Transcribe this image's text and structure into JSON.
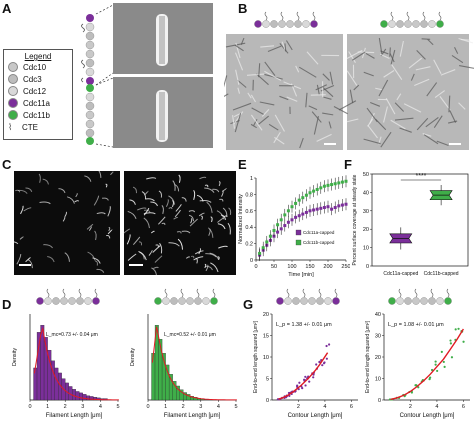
{
  "panels": {
    "A": {
      "letter": "A",
      "legend": {
        "title": "Legend",
        "items": [
          {
            "label": "Cdc10",
            "color": "#c8c8c8"
          },
          {
            "label": "Cdc3",
            "color": "#bdbdbd"
          },
          {
            "label": "Cdc12",
            "color": "#d9d9d9"
          },
          {
            "label": "Cdc11a",
            "color": "#7b2f9a"
          },
          {
            "label": "Cdc11b",
            "color": "#3fae49"
          },
          {
            "label": "CTE",
            "color": "#555555"
          }
        ]
      }
    },
    "B": {
      "letter": "B"
    },
    "C": {
      "letter": "C"
    },
    "D": {
      "letter": "D"
    },
    "E": {
      "letter": "E"
    },
    "F": {
      "letter": "F"
    },
    "G": {
      "letter": "G"
    }
  },
  "colors": {
    "purple": "#7b2f9a",
    "green": "#3fae49",
    "red": "#e01b24",
    "grey": "#bdbdbd"
  },
  "chart_data": [
    {
      "id": "E",
      "type": "line",
      "xlabel": "Time [min]",
      "ylabel": "Normalized Intensity",
      "xlim": [
        0,
        250
      ],
      "ylim": [
        0,
        1
      ],
      "xticks": [
        "0",
        "50",
        "100",
        "150",
        "200",
        "250"
      ],
      "yticks": [
        "0",
        "0.2",
        "0.4",
        "0.6",
        "0.8",
        "1"
      ],
      "legend": {
        "placement": "lower-right",
        "entries": [
          "Cdc11a-capped",
          "Cdc11b-capped"
        ]
      },
      "series": [
        {
          "name": "Cdc11a-capped",
          "color": "#7b2f9a",
          "x": [
            10,
            20,
            30,
            40,
            50,
            60,
            70,
            80,
            90,
            100,
            110,
            120,
            130,
            140,
            150,
            160,
            170,
            180,
            190,
            200,
            210,
            220,
            230,
            240,
            250
          ],
          "y": [
            0.06,
            0.12,
            0.18,
            0.24,
            0.29,
            0.34,
            0.38,
            0.42,
            0.46,
            0.49,
            0.52,
            0.54,
            0.56,
            0.58,
            0.6,
            0.61,
            0.62,
            0.63,
            0.64,
            0.65,
            0.62,
            0.64,
            0.66,
            0.67,
            0.68
          ]
        },
        {
          "name": "Cdc11b-capped",
          "color": "#3fae49",
          "x": [
            10,
            20,
            30,
            40,
            50,
            60,
            70,
            80,
            90,
            100,
            110,
            120,
            130,
            140,
            150,
            160,
            170,
            180,
            190,
            200,
            210,
            220,
            230,
            240,
            250
          ],
          "y": [
            0.08,
            0.15,
            0.22,
            0.29,
            0.36,
            0.43,
            0.49,
            0.55,
            0.6,
            0.65,
            0.69,
            0.73,
            0.76,
            0.79,
            0.82,
            0.84,
            0.86,
            0.88,
            0.9,
            0.91,
            0.92,
            0.93,
            0.94,
            0.95,
            0.96
          ]
        }
      ]
    },
    {
      "id": "F",
      "type": "box",
      "ylabel": "Percent surface coverage at steady state",
      "ylim": [
        0,
        50
      ],
      "yticks": [
        "0",
        "10",
        "20",
        "30",
        "40",
        "50"
      ],
      "categories": [
        "Cdc11a-capped",
        "Cdc11b-capped"
      ],
      "boxes": [
        {
          "category": "Cdc11a-capped",
          "color": "#7b2f9a",
          "min": 9,
          "q1": 12.5,
          "median": 15,
          "q3": 17.5,
          "max": 21
        },
        {
          "category": "Cdc11b-capped",
          "color": "#3fae49",
          "min": 33,
          "q1": 36,
          "median": 38.5,
          "q3": 41,
          "max": 44
        }
      ],
      "annotation": "****"
    },
    {
      "id": "D-left",
      "type": "bar",
      "xlabel": "Filament Length [μm]",
      "ylabel": "Density",
      "xticks": [
        "0",
        "1",
        "2",
        "3",
        "4",
        "5"
      ],
      "annotation": "L_mc=0.73 +/- 0.04 μm",
      "color": "#7b2f9a",
      "x": [
        0.3,
        0.5,
        0.7,
        0.9,
        1.1,
        1.3,
        1.5,
        1.7,
        1.9,
        2.1,
        2.3,
        2.5,
        2.7,
        2.9,
        3.1,
        3.3,
        3.5,
        3.7,
        3.9,
        4.1,
        4.3
      ],
      "values": [
        0.45,
        0.95,
        1.05,
        0.88,
        0.7,
        0.55,
        0.45,
        0.38,
        0.3,
        0.24,
        0.19,
        0.15,
        0.12,
        0.1,
        0.08,
        0.06,
        0.05,
        0.04,
        0.03,
        0.02,
        0.02
      ]
    },
    {
      "id": "D-right",
      "type": "bar",
      "xlabel": "Filament Length [μm]",
      "ylabel": "Density",
      "xticks": [
        "0",
        "1",
        "2",
        "3",
        "4",
        "5"
      ],
      "annotation": "L_mc=0.52 +/- 0.01 μm",
      "color": "#3fae49",
      "x": [
        0.3,
        0.5,
        0.7,
        0.9,
        1.1,
        1.3,
        1.5,
        1.7,
        1.9,
        2.1,
        2.3,
        2.5,
        2.7,
        2.9,
        3.1
      ],
      "values": [
        1.0,
        1.6,
        1.3,
        1.0,
        0.75,
        0.55,
        0.4,
        0.3,
        0.22,
        0.16,
        0.12,
        0.08,
        0.06,
        0.04,
        0.03
      ]
    },
    {
      "id": "G-left",
      "type": "scatter",
      "xlabel": "Contour Length [μm]",
      "ylabel": "End-to-end length squared [μm²]",
      "xticks": [
        "2",
        "4",
        "6"
      ],
      "yticks": [
        "0",
        "5",
        "10",
        "15",
        "20"
      ],
      "annotation": "L_p = 1.38 +/- 0.01 μm",
      "color": "#7b2f9a",
      "x": [
        0.5,
        0.8,
        1.0,
        1.2,
        1.4,
        1.6,
        1.8,
        2.0,
        2.2,
        2.4,
        2.6,
        2.8,
        3.0,
        3.3,
        3.6,
        3.9,
        4.2
      ],
      "y": [
        0.2,
        0.5,
        0.8,
        1.1,
        1.5,
        1.9,
        2.4,
        2.9,
        3.4,
        4.0,
        4.6,
        5.2,
        5.9,
        7.0,
        8.2,
        9.6,
        11.0
      ]
    },
    {
      "id": "G-right",
      "type": "scatter",
      "xlabel": "Contour Length [μm]",
      "ylabel": "End-to-end length squared [μm²]",
      "xticks": [
        "2",
        "4",
        "6"
      ],
      "yticks": [
        "0",
        "10",
        "20",
        "30",
        "40"
      ],
      "annotation": "L_p = 1.08 +/- 0.01 μm",
      "color": "#3fae49",
      "x": [
        0.5,
        1.0,
        1.5,
        2.0,
        2.5,
        3.0,
        3.5,
        4.0,
        4.5,
        5.0,
        5.5,
        6.0
      ],
      "y": [
        0.3,
        1.0,
        2.2,
        4.0,
        6.3,
        9.0,
        12.0,
        15.5,
        19.0,
        23.5,
        28.0,
        33.0
      ]
    }
  ]
}
